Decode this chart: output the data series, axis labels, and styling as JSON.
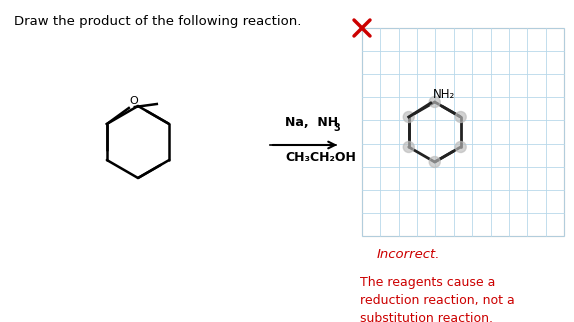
{
  "title_text": "Draw the product of the following reaction.",
  "title_color": "#000000",
  "title_fontsize": 9.5,
  "reagent_line1": "Na,  NH",
  "reagent_subscript3": "3",
  "reagent_line2": "CH₃CH₂OH",
  "incorrect_text": "Incorrect.",
  "incorrect_color": "#cc0000",
  "incorrect_fontsize": 9.5,
  "feedback_text": "The reagents cause a\nreduction reaction, not a\nsubstitution reaction.",
  "feedback_color": "#cc0000",
  "feedback_fontsize": 9,
  "grid_color": "#b8d8ea",
  "background_color": "#ffffff",
  "x_mark_color": "#cc0000",
  "amine_label": "NH₂",
  "amine_color": "#000000",
  "lw_structure": 1.8,
  "lw_grid": 0.6
}
